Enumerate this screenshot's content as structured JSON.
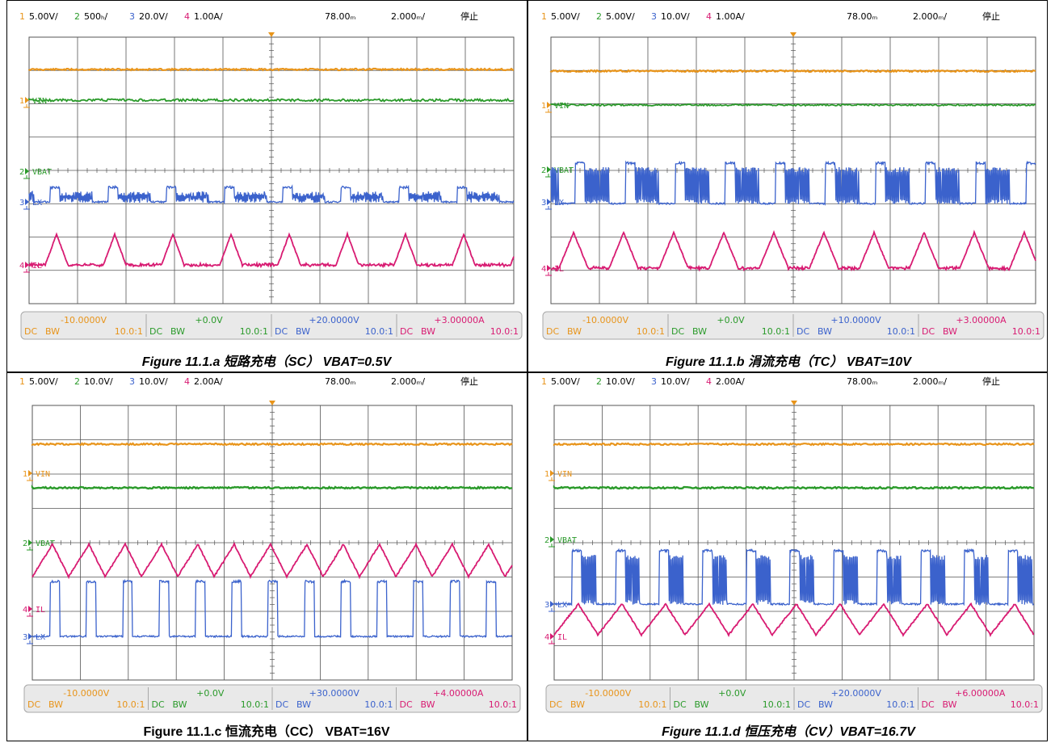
{
  "colors": {
    "ch1": "#e8941a",
    "ch2": "#2a9a2a",
    "ch3": "#3b62cc",
    "ch4": "#d81b72",
    "grid": "#555555",
    "panel_bg": "#e9e9e9",
    "panel_border": "#a8a8a8"
  },
  "panels": [
    {
      "caption": "Figure 11.1.a 短路充电（SC） VBAT=0.5V",
      "caption_italic": true,
      "header": {
        "ch1_num": "1",
        "ch1_scale": "5.00V/",
        "ch2_num": "2",
        "ch2_scale": "500ₕ/",
        "ch3_num": "3",
        "ch3_scale": "20.0V/",
        "ch4_num": "4",
        "ch4_scale": "1.00A/",
        "time_pos": "78.00ₘ",
        "time_scale": "2.000ₘ/",
        "status": "停止"
      },
      "labels": {
        "vin": "VIN",
        "vbat": "VBAT",
        "lx": "LX",
        "il": "IL"
      },
      "footer": [
        {
          "offset": "-10.0000V",
          "coupling": "DC",
          "bw": "BW",
          "probe": "10.0:1"
        },
        {
          "offset": "+0.0V",
          "coupling": "DC",
          "bw": "BW",
          "probe": "10.0:1"
        },
        {
          "offset": "+20.0000V",
          "coupling": "DC",
          "bw": "BW",
          "probe": "10.0:1"
        },
        {
          "offset": "+3.00000A",
          "coupling": "DC",
          "bw": "BW",
          "probe": "10.0:1"
        }
      ]
    },
    {
      "caption": "Figure 11.1.b 涓流充电（TC） VBAT=10V",
      "caption_italic": true,
      "header": {
        "ch1_num": "1",
        "ch1_scale": "5.00V/",
        "ch2_num": "2",
        "ch2_scale": "5.00V/",
        "ch3_num": "3",
        "ch3_scale": "10.0V/",
        "ch4_num": "4",
        "ch4_scale": "1.00A/",
        "time_pos": "78.00ₘ",
        "time_scale": "2.000ₘ/",
        "status": "停止"
      },
      "labels": {
        "vin": "VIN",
        "vbat": "VBAT",
        "lx": "LX",
        "il": "IL"
      },
      "footer": [
        {
          "offset": "-10.0000V",
          "coupling": "DC",
          "bw": "BW",
          "probe": "10.0:1"
        },
        {
          "offset": "+0.0V",
          "coupling": "DC",
          "bw": "BW",
          "probe": "10.0:1"
        },
        {
          "offset": "+10.0000V",
          "coupling": "DC",
          "bw": "BW",
          "probe": "10.0:1"
        },
        {
          "offset": "+3.00000A",
          "coupling": "DC",
          "bw": "BW",
          "probe": "10.0:1"
        }
      ]
    },
    {
      "caption": "Figure 11.1.c 恒流充电（CC） VBAT=16V",
      "caption_italic": false,
      "header": {
        "ch1_num": "1",
        "ch1_scale": "5.00V/",
        "ch2_num": "2",
        "ch2_scale": "10.0V/",
        "ch3_num": "3",
        "ch3_scale": "10.0V/",
        "ch4_num": "4",
        "ch4_scale": "2.00A/",
        "time_pos": "78.00ₘ",
        "time_scale": "2.000ₘ/",
        "status": "停止"
      },
      "labels": {
        "vin": "VIN",
        "vbat": "VBAT",
        "lx": "LX",
        "il": "IL"
      },
      "footer": [
        {
          "offset": "-10.0000V",
          "coupling": "DC",
          "bw": "BW",
          "probe": "10.0:1"
        },
        {
          "offset": "+0.0V",
          "coupling": "DC",
          "bw": "BW",
          "probe": "10.0:1"
        },
        {
          "offset": "+30.0000V",
          "coupling": "DC",
          "bw": "BW",
          "probe": "10.0:1"
        },
        {
          "offset": "+4.00000A",
          "coupling": "DC",
          "bw": "BW",
          "probe": "10.0:1"
        }
      ]
    },
    {
      "caption": "Figure 11.1.d 恒压充电（CV）VBAT=16.7V",
      "caption_italic": true,
      "header": {
        "ch1_num": "1",
        "ch1_scale": "5.00V/",
        "ch2_num": "2",
        "ch2_scale": "10.0V/",
        "ch3_num": "3",
        "ch3_scale": "10.0V/",
        "ch4_num": "4",
        "ch4_scale": "2.00A/",
        "time_pos": "78.00ₘ",
        "time_scale": "2.000ₘ/",
        "status": "停止"
      },
      "labels": {
        "vin": "VIN",
        "vbat": "VBAT",
        "lx": "LX",
        "il": "IL"
      },
      "footer": [
        {
          "offset": "-10.0000V",
          "coupling": "DC",
          "bw": "BW",
          "probe": "10.0:1"
        },
        {
          "offset": "+0.0V",
          "coupling": "DC",
          "bw": "BW",
          "probe": "10.0:1"
        },
        {
          "offset": "+20.0000V",
          "coupling": "DC",
          "bw": "BW",
          "probe": "10.0:1"
        },
        {
          "offset": "+6.00000A",
          "coupling": "DC",
          "bw": "BW",
          "probe": "10.0:1"
        }
      ]
    }
  ]
}
